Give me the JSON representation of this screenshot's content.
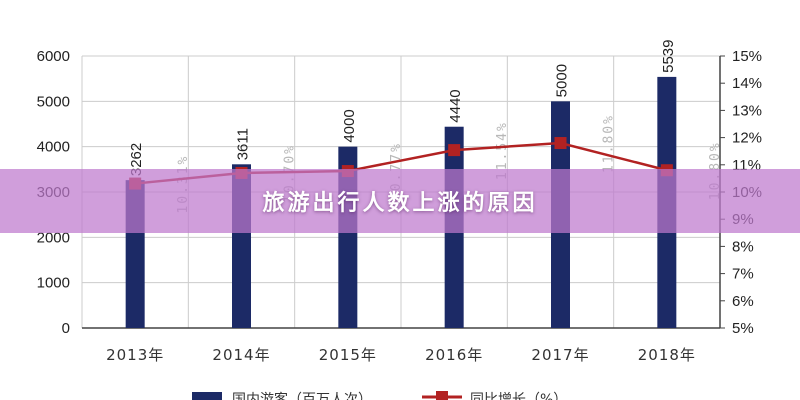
{
  "banner": {
    "title": "旅游出行人数上涨的原因"
  },
  "colors": {
    "bar": "#1c2a66",
    "line": "#b22222",
    "grid": "#cccccc",
    "banner": "#be78cd"
  },
  "chart_data": {
    "type": "bar",
    "categories": [
      "2013年",
      "2014年",
      "2015年",
      "2016年",
      "2017年",
      "2018年"
    ],
    "series": [
      {
        "name": "国内游客（百万人次）",
        "type": "bar",
        "axis": "left",
        "values": [
          3262,
          3611,
          4000,
          4440,
          5000,
          5539
        ],
        "labels": [
          "3262",
          "3611",
          "4000",
          "4440",
          "5000",
          "5539"
        ]
      },
      {
        "name": "同比增长（%）",
        "type": "line",
        "axis": "right",
        "values": [
          10.31,
          10.7,
          10.77,
          11.54,
          11.8,
          10.8
        ],
        "labels": [
          "10.31%",
          "10.70%",
          "10.77%",
          "11.54%",
          "11.80%",
          "10.80%"
        ]
      }
    ],
    "y_left": {
      "min": 0,
      "max": 6000,
      "ticks": [
        "0",
        "1000",
        "2000",
        "3000",
        "4000",
        "5000",
        "6000"
      ]
    },
    "y_right": {
      "min": 5,
      "max": 15,
      "ticks": [
        "5%",
        "6%",
        "7%",
        "8%",
        "9%",
        "10%",
        "11%",
        "12%",
        "13%",
        "14%",
        "15%"
      ]
    },
    "grid": true,
    "legend_position": "bottom"
  }
}
